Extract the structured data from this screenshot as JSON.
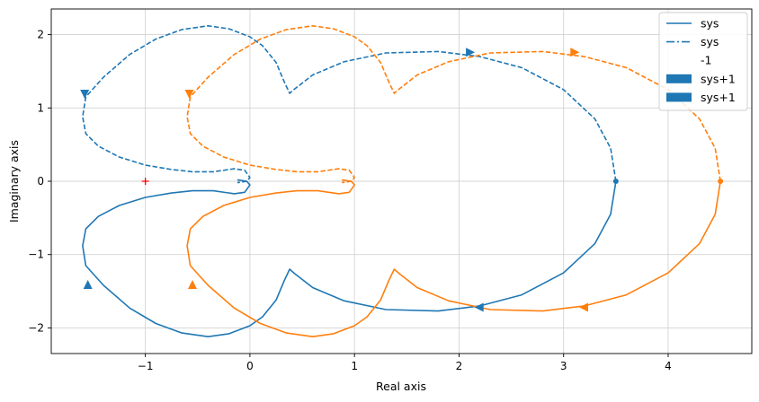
{
  "chart_data": {
    "type": "line",
    "title": "",
    "xlabel": "Real axis",
    "ylabel": "Imaginary axis",
    "xlim": [
      -1.9,
      4.8
    ],
    "ylim": [
      -2.35,
      2.35
    ],
    "xticks": [
      -1,
      0,
      1,
      2,
      3,
      4
    ],
    "yticks": [
      -2,
      -1,
      0,
      1,
      2
    ],
    "xtick_labels": [
      "−1",
      "0",
      "1",
      "2",
      "3",
      "4"
    ],
    "ytick_labels": [
      "−2",
      "−1",
      "0",
      "1",
      "2"
    ],
    "grid": true,
    "legend": {
      "placement": "top-right",
      "entries": [
        {
          "label": "sys",
          "style": "solid-line",
          "color": "#1f77b4"
        },
        {
          "label": "sys",
          "style": "dashdot-line",
          "color": "#1f77b4"
        },
        {
          "label": "-1",
          "style": "none",
          "color": "#ff0000"
        },
        {
          "label": "sys+1",
          "style": "patch",
          "color": "#1f77b4"
        },
        {
          "label": "sys+1",
          "style": "patch",
          "color": "#1f77b4"
        }
      ]
    },
    "critical_point": {
      "x": -1,
      "y": 0,
      "marker": "+",
      "color": "#ff0000"
    },
    "series": [
      {
        "name": "sys",
        "color": "#1f77b4",
        "x": [
          3.5,
          3.45,
          3.3,
          3.0,
          2.6,
          2.2,
          1.8,
          1.3,
          0.9,
          0.6,
          0.42,
          0.38,
          0.33,
          0.25,
          0.12,
          0.0,
          -0.2,
          -0.4,
          -0.65,
          -0.9,
          -1.15,
          -1.4,
          -1.57,
          -1.6,
          -1.57,
          -1.45,
          -1.25,
          -1.0,
          -0.75,
          -0.55,
          -0.35,
          -0.15,
          -0.05,
          0.0,
          -0.03,
          -0.12
        ],
        "y": [
          0.0,
          -0.45,
          -0.85,
          -1.25,
          -1.55,
          -1.7,
          -1.77,
          -1.75,
          -1.63,
          -1.45,
          -1.25,
          -1.2,
          -1.35,
          -1.62,
          -1.85,
          -1.97,
          -2.08,
          -2.12,
          -2.07,
          -1.94,
          -1.73,
          -1.42,
          -1.15,
          -0.88,
          -0.65,
          -0.48,
          -0.33,
          -0.22,
          -0.16,
          -0.13,
          -0.13,
          -0.17,
          -0.15,
          -0.05,
          0.0,
          0.02
        ]
      },
      {
        "name": "sys",
        "color": "#1f77b4",
        "dash": true,
        "x": [
          3.5,
          3.45,
          3.3,
          3.0,
          2.6,
          2.2,
          1.8,
          1.3,
          0.9,
          0.6,
          0.42,
          0.38,
          0.33,
          0.25,
          0.12,
          0.0,
          -0.2,
          -0.4,
          -0.65,
          -0.9,
          -1.15,
          -1.4,
          -1.57,
          -1.6,
          -1.57,
          -1.45,
          -1.25,
          -1.0,
          -0.75,
          -0.55,
          -0.35,
          -0.15,
          -0.05,
          0.0,
          -0.03,
          -0.12
        ],
        "y": [
          0.0,
          0.45,
          0.85,
          1.25,
          1.55,
          1.7,
          1.77,
          1.75,
          1.63,
          1.45,
          1.25,
          1.2,
          1.35,
          1.62,
          1.85,
          1.97,
          2.08,
          2.12,
          2.07,
          1.94,
          1.73,
          1.42,
          1.15,
          0.88,
          0.65,
          0.48,
          0.33,
          0.22,
          0.16,
          0.13,
          0.13,
          0.17,
          0.15,
          0.05,
          0.0,
          -0.02
        ]
      },
      {
        "name": "sys+1",
        "color": "#ff7f0e",
        "x": [
          4.5,
          4.45,
          4.3,
          4.0,
          3.6,
          3.2,
          2.8,
          2.3,
          1.9,
          1.6,
          1.42,
          1.38,
          1.33,
          1.25,
          1.12,
          1.0,
          0.8,
          0.6,
          0.35,
          0.1,
          -0.15,
          -0.4,
          -0.57,
          -0.6,
          -0.57,
          -0.45,
          -0.25,
          0.0,
          0.25,
          0.45,
          0.65,
          0.85,
          0.95,
          1.0,
          0.97,
          0.88
        ],
        "y": [
          0.0,
          -0.45,
          -0.85,
          -1.25,
          -1.55,
          -1.7,
          -1.77,
          -1.75,
          -1.63,
          -1.45,
          -1.25,
          -1.2,
          -1.35,
          -1.62,
          -1.85,
          -1.97,
          -2.08,
          -2.12,
          -2.07,
          -1.94,
          -1.73,
          -1.42,
          -1.15,
          -0.88,
          -0.65,
          -0.48,
          -0.33,
          -0.22,
          -0.16,
          -0.13,
          -0.13,
          -0.17,
          -0.15,
          -0.05,
          0.0,
          0.02
        ]
      },
      {
        "name": "sys+1",
        "color": "#ff7f0e",
        "dash": true,
        "x": [
          4.5,
          4.45,
          4.3,
          4.0,
          3.6,
          3.2,
          2.8,
          2.3,
          1.9,
          1.6,
          1.42,
          1.38,
          1.33,
          1.25,
          1.12,
          1.0,
          0.8,
          0.6,
          0.35,
          0.1,
          -0.15,
          -0.4,
          -0.57,
          -0.6,
          -0.57,
          -0.45,
          -0.25,
          0.0,
          0.25,
          0.45,
          0.65,
          0.85,
          0.95,
          1.0,
          0.97,
          0.88
        ],
        "y": [
          0.0,
          0.45,
          0.85,
          1.25,
          1.55,
          1.7,
          1.77,
          1.75,
          1.63,
          1.45,
          1.25,
          1.2,
          1.35,
          1.62,
          1.85,
          1.97,
          2.08,
          2.12,
          2.07,
          1.94,
          1.73,
          1.42,
          1.15,
          0.88,
          0.65,
          0.48,
          0.33,
          0.22,
          0.16,
          0.13,
          0.13,
          0.17,
          0.15,
          0.05,
          0.0,
          -0.02
        ]
      }
    ],
    "arrows": [
      {
        "x": 2.2,
        "y": -1.72,
        "direction": "left",
        "color": "#1f77b4"
      },
      {
        "x": -1.55,
        "y": -1.42,
        "direction": "up",
        "color": "#1f77b4"
      },
      {
        "x": 2.1,
        "y": 1.76,
        "direction": "right",
        "color": "#1f77b4"
      },
      {
        "x": -1.58,
        "y": 1.2,
        "direction": "down",
        "color": "#1f77b4"
      },
      {
        "x": 3.2,
        "y": -1.72,
        "direction": "left",
        "color": "#ff7f0e"
      },
      {
        "x": -0.55,
        "y": -1.42,
        "direction": "up",
        "color": "#ff7f0e"
      },
      {
        "x": 3.1,
        "y": 1.76,
        "direction": "right",
        "color": "#ff7f0e"
      },
      {
        "x": -0.58,
        "y": 1.2,
        "direction": "down",
        "color": "#ff7f0e"
      }
    ],
    "start_markers": [
      {
        "x": 3.5,
        "y": 0,
        "color": "#1f77b4"
      },
      {
        "x": 4.5,
        "y": 0,
        "color": "#ff7f0e"
      }
    ]
  }
}
